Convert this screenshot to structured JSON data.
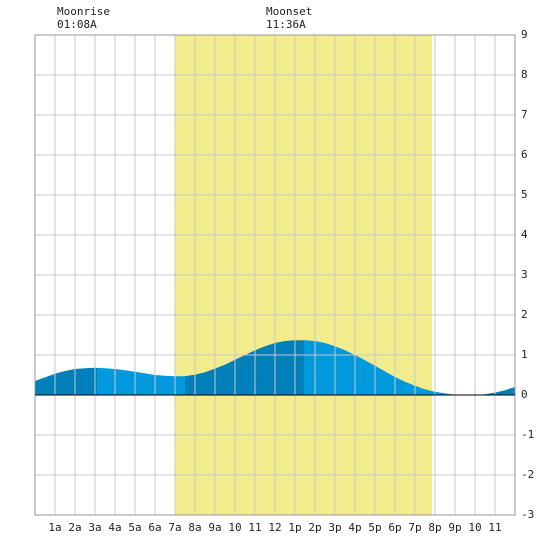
{
  "moon": {
    "rise_label": "Moonrise",
    "rise_time": "01:08A",
    "set_label": "Moonset",
    "set_time": "11:36A"
  },
  "colors": {
    "background": "#ffffff",
    "daylight": "#f3ec8c",
    "grid": "#c8c8c8",
    "tide_light": "#0099dd",
    "tide_dark": "#0080bb",
    "baseline": "#000000"
  },
  "chart_data": {
    "type": "area",
    "title": "",
    "xlabel": "",
    "ylabel": "",
    "xlim": [
      0,
      24
    ],
    "ylim": [
      -3,
      9
    ],
    "y_ticks": [
      -3,
      -2,
      -1,
      0,
      1,
      2,
      3,
      4,
      5,
      6,
      7,
      8,
      9
    ],
    "x_tick_positions": [
      1,
      2,
      3,
      4,
      5,
      6,
      7,
      8,
      9,
      10,
      11,
      12,
      13,
      14,
      15,
      16,
      17,
      18,
      19,
      20,
      21,
      22,
      23
    ],
    "x_tick_labels": [
      "1a",
      "2a",
      "3a",
      "4a",
      "5a",
      "6a",
      "7a",
      "8a",
      "9a",
      "10",
      "11",
      "12",
      "1p",
      "2p",
      "3p",
      "4p",
      "5p",
      "6p",
      "7p",
      "8p",
      "9p",
      "10",
      "11"
    ],
    "grid": true,
    "daylight": [
      7,
      19.85
    ],
    "moonrise": 1.13,
    "moonset": 11.6,
    "extremes": [
      {
        "hour": 3.1,
        "height": 0.68
      },
      {
        "hour": 7.5,
        "height": 0.47
      },
      {
        "hour": 13.45,
        "height": 1.37
      },
      {
        "hour": 22.0,
        "height": 0.0
      }
    ],
    "series": [
      {
        "x": [
          0,
          0.5,
          1,
          1.5,
          2,
          2.5,
          3,
          3.5,
          4,
          4.5,
          5,
          5.5,
          6,
          6.5,
          7,
          7.5,
          8,
          8.5,
          9,
          9.5,
          10,
          10.5,
          11,
          11.5,
          12,
          12.5,
          13,
          13.5,
          14,
          14.5,
          15,
          15.5,
          16,
          16.5,
          17,
          17.5,
          18,
          18.5,
          19,
          19.5,
          20,
          20.5,
          21,
          21.5,
          22,
          22.5,
          23,
          23.5,
          24
        ],
        "y": [
          0.35,
          0.44,
          0.53,
          0.6,
          0.65,
          0.67,
          0.68,
          0.67,
          0.65,
          0.62,
          0.58,
          0.54,
          0.5,
          0.48,
          0.47,
          0.47,
          0.51,
          0.57,
          0.66,
          0.76,
          0.88,
          1.0,
          1.12,
          1.22,
          1.3,
          1.35,
          1.37,
          1.37,
          1.35,
          1.3,
          1.22,
          1.12,
          1.0,
          0.87,
          0.73,
          0.59,
          0.45,
          0.33,
          0.23,
          0.14,
          0.08,
          0.04,
          0.01,
          0.0,
          0.0,
          0.02,
          0.06,
          0.12,
          0.2
        ]
      }
    ]
  }
}
